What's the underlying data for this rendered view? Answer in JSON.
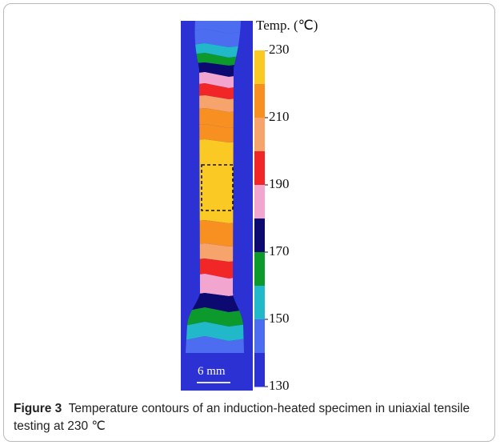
{
  "figure": {
    "legend_title": "Temp. (℃)",
    "legend_ticks": [
      "230",
      "210",
      "190",
      "170",
      "150",
      "130"
    ],
    "legend_colors": [
      "#fbc923",
      "#f79021",
      "#f7a46c",
      "#f12626",
      "#f2a6cf",
      "#0c0a71",
      "#0c9a2c",
      "#21b8c9",
      "#4d6df0",
      "#2b31d3"
    ],
    "background_color": "#2b31d3",
    "scale_bar_label": "6 mm"
  },
  "caption": {
    "label": "Figure 3",
    "text": "Temperature contours of an induction-heated specimen in uniaxial tensile testing at 230 ℃"
  }
}
